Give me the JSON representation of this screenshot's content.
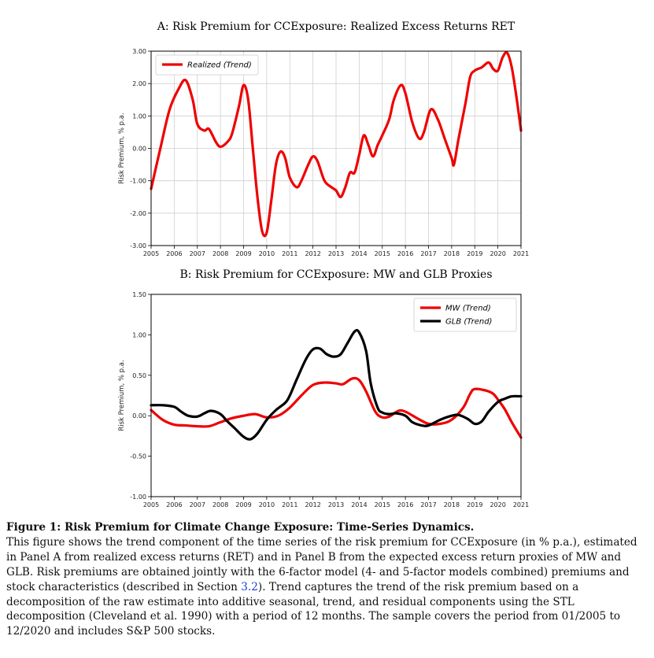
{
  "chart_data": [
    {
      "type": "line",
      "title": "A: Risk Premium for CCExposure: Realized Excess Returns RET",
      "ylabel": "Risk Premium, % p.a.",
      "xlim": [
        2005,
        2021
      ],
      "xticks": [
        2005,
        2006,
        2007,
        2008,
        2009,
        2010,
        2011,
        2012,
        2013,
        2014,
        2015,
        2016,
        2017,
        2018,
        2019,
        2020,
        2021
      ],
      "ylim": [
        -3,
        3
      ],
      "yticks": [
        {
          "value": 3,
          "label": "3.00"
        },
        {
          "value": 2,
          "label": "2.00"
        },
        {
          "value": 1,
          "label": "1.00"
        },
        {
          "value": 0,
          "label": "0.00"
        },
        {
          "value": -1,
          "label": "-1.00"
        },
        {
          "value": -2,
          "label": "-2.00"
        },
        {
          "value": -3,
          "label": "-3.00"
        }
      ],
      "grid": true,
      "legend": "upper left",
      "series": [
        {
          "name": "Realized (Trend)",
          "color": "#ee0000",
          "x": [
            2005.0,
            2005.4,
            2005.8,
            2006.2,
            2006.5,
            2006.8,
            2007.0,
            2007.3,
            2007.5,
            2007.8,
            2008.0,
            2008.3,
            2008.5,
            2008.8,
            2009.0,
            2009.2,
            2009.4,
            2009.6,
            2009.8,
            2010.0,
            2010.2,
            2010.4,
            2010.6,
            2010.8,
            2011.0,
            2011.3,
            2011.5,
            2011.8,
            2012.0,
            2012.2,
            2012.5,
            2012.8,
            2013.0,
            2013.2,
            2013.4,
            2013.6,
            2013.8,
            2014.0,
            2014.2,
            2014.4,
            2014.6,
            2014.8,
            2015.0,
            2015.3,
            2015.5,
            2015.8,
            2016.0,
            2016.3,
            2016.6,
            2016.8,
            2017.1,
            2017.4,
            2017.7,
            2018.0,
            2018.1,
            2018.3,
            2018.6,
            2018.8,
            2019.0,
            2019.3,
            2019.6,
            2019.8,
            2020.0,
            2020.2,
            2020.4,
            2020.6,
            2020.8,
            2021.0
          ],
          "values": [
            -1.25,
            0.0,
            1.2,
            1.85,
            2.1,
            1.5,
            0.75,
            0.55,
            0.6,
            0.2,
            0.05,
            0.2,
            0.45,
            1.3,
            1.95,
            1.5,
            0.0,
            -1.5,
            -2.55,
            -2.6,
            -1.6,
            -0.5,
            -0.1,
            -0.3,
            -0.9,
            -1.2,
            -1.0,
            -0.5,
            -0.25,
            -0.4,
            -1.0,
            -1.2,
            -1.3,
            -1.5,
            -1.2,
            -0.75,
            -0.75,
            -0.2,
            0.4,
            0.1,
            -0.25,
            0.1,
            0.4,
            0.9,
            1.5,
            1.95,
            1.7,
            0.8,
            0.3,
            0.5,
            1.2,
            0.9,
            0.3,
            -0.3,
            -0.5,
            0.3,
            1.4,
            2.2,
            2.4,
            2.5,
            2.65,
            2.45,
            2.4,
            2.8,
            2.95,
            2.5,
            1.6,
            0.55
          ]
        }
      ]
    },
    {
      "type": "line",
      "title": "B: Risk Premium for CCExposure: MW and GLB Proxies",
      "ylabel": "Risk Premium, % p.a.",
      "xlim": [
        2005,
        2021
      ],
      "xticks": [
        2005,
        2006,
        2007,
        2008,
        2009,
        2010,
        2011,
        2012,
        2013,
        2014,
        2015,
        2016,
        2017,
        2018,
        2019,
        2020,
        2021
      ],
      "ylim": [
        -1,
        1.5
      ],
      "yticks": [
        {
          "value": 1.5,
          "label": "1.50"
        },
        {
          "value": 1,
          "label": "1.00"
        },
        {
          "value": 0.5,
          "label": "0.50"
        },
        {
          "value": 0,
          "label": "0.00"
        },
        {
          "value": -0.5,
          "label": "-0.50"
        },
        {
          "value": -1,
          "label": "-1.00"
        }
      ],
      "grid": false,
      "legend": "upper right",
      "series": [
        {
          "name": "MW (Trend)",
          "color": "#ee0000",
          "x": [
            2005.0,
            2005.5,
            2006.0,
            2006.5,
            2007.0,
            2007.5,
            2008.0,
            2008.5,
            2009.0,
            2009.5,
            2010.0,
            2010.5,
            2011.0,
            2011.5,
            2012.0,
            2012.5,
            2013.0,
            2013.3,
            2013.7,
            2014.0,
            2014.3,
            2014.7,
            2015.0,
            2015.3,
            2015.7,
            2016.0,
            2016.5,
            2017.0,
            2017.5,
            2018.0,
            2018.5,
            2018.8,
            2019.0,
            2019.5,
            2019.8,
            2020.0,
            2020.3,
            2020.6,
            2021.0
          ],
          "values": [
            0.07,
            -0.05,
            -0.11,
            -0.12,
            -0.13,
            -0.13,
            -0.08,
            -0.03,
            0.0,
            0.02,
            -0.02,
            0.0,
            0.1,
            0.25,
            0.38,
            0.41,
            0.4,
            0.39,
            0.46,
            0.44,
            0.3,
            0.05,
            -0.02,
            -0.01,
            0.06,
            0.05,
            -0.03,
            -0.1,
            -0.1,
            -0.05,
            0.1,
            0.27,
            0.33,
            0.31,
            0.27,
            0.2,
            0.08,
            -0.08,
            -0.27
          ]
        },
        {
          "name": "GLB (Trend)",
          "color": "#000000",
          "x": [
            2005.0,
            2005.5,
            2006.0,
            2006.3,
            2006.6,
            2007.0,
            2007.3,
            2007.6,
            2008.0,
            2008.3,
            2008.6,
            2009.0,
            2009.3,
            2009.6,
            2010.0,
            2010.4,
            2010.8,
            2011.0,
            2011.3,
            2011.7,
            2012.0,
            2012.3,
            2012.6,
            2012.9,
            2013.2,
            2013.5,
            2013.8,
            2014.0,
            2014.3,
            2014.5,
            2014.8,
            2015.0,
            2015.3,
            2015.6,
            2016.0,
            2016.3,
            2016.7,
            2017.0,
            2017.5,
            2018.0,
            2018.3,
            2018.7,
            2019.0,
            2019.3,
            2019.6,
            2020.0,
            2020.3,
            2020.6,
            2021.0
          ],
          "values": [
            0.13,
            0.13,
            0.11,
            0.05,
            0.0,
            -0.01,
            0.03,
            0.06,
            0.02,
            -0.07,
            -0.15,
            -0.26,
            -0.29,
            -0.22,
            -0.05,
            0.07,
            0.16,
            0.25,
            0.45,
            0.7,
            0.82,
            0.83,
            0.76,
            0.73,
            0.76,
            0.9,
            1.04,
            1.03,
            0.8,
            0.4,
            0.1,
            0.04,
            0.02,
            0.03,
            0.0,
            -0.08,
            -0.12,
            -0.12,
            -0.05,
            0.0,
            0.01,
            -0.04,
            -0.1,
            -0.07,
            0.05,
            0.17,
            0.21,
            0.24,
            0.24
          ]
        }
      ]
    }
  ],
  "caption": {
    "title": "Figure 1: Risk Premium for Climate Change Exposure: Time-Series Dynamics.",
    "body": [
      "This figure shows the trend component of the time series of the risk premium for CCExposure (in % p.a.), estimated in Panel A from realized excess returns (RET) and in Panel B from the expected excess return proxies of MW and GLB. Risk premiums are obtained jointly with the 6-factor model (4- and 5-factor models combined) premiums and stock characteristics (described in Section ",
      "3.2",
      "). Trend captures the trend of the risk premium based on a decomposition of the raw estimate into additive seasonal, trend, and residual components using the STL decomposition (Cleveland et al. 1990) with a period of 12 months. The sample covers the period from 01/2005 to 12/2020 and includes S&P 500 stocks."
    ]
  }
}
